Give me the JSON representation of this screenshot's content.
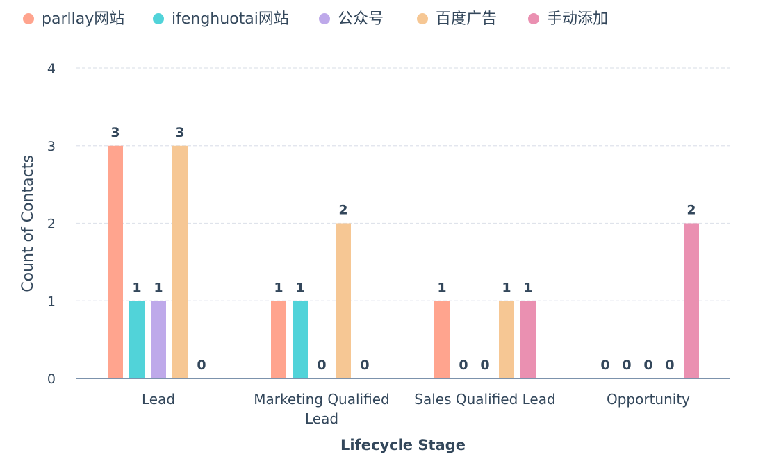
{
  "chart_data": {
    "type": "bar",
    "categories": [
      "Lead",
      "Marketing Qualified Lead",
      "Sales Qualified Lead",
      "Opportunity"
    ],
    "category_lines": [
      [
        "Lead"
      ],
      [
        "Marketing Qualified",
        "Lead"
      ],
      [
        "Sales Qualified Lead"
      ],
      [
        "Opportunity"
      ]
    ],
    "series": [
      {
        "name": "parllay网站",
        "color": "#ffa48e",
        "values": [
          3,
          1,
          1,
          0
        ]
      },
      {
        "name": "ifenghuotai网站",
        "color": "#51d3d9",
        "values": [
          1,
          1,
          0,
          0
        ]
      },
      {
        "name": "公众号",
        "color": "#bea9ea",
        "values": [
          1,
          0,
          0,
          0
        ]
      },
      {
        "name": "百度广告",
        "color": "#f6c794",
        "values": [
          3,
          2,
          1,
          0
        ]
      },
      {
        "name": "手动添加",
        "color": "#ea90b1",
        "values": [
          0,
          0,
          1,
          2
        ]
      }
    ],
    "xlabel": "Lifecycle Stage",
    "ylabel": "Count of Contacts",
    "ylim": [
      0,
      4
    ],
    "yticks": [
      0,
      1,
      2,
      3,
      4
    ],
    "grid": true,
    "legend": "top-left",
    "data_labels": true
  }
}
